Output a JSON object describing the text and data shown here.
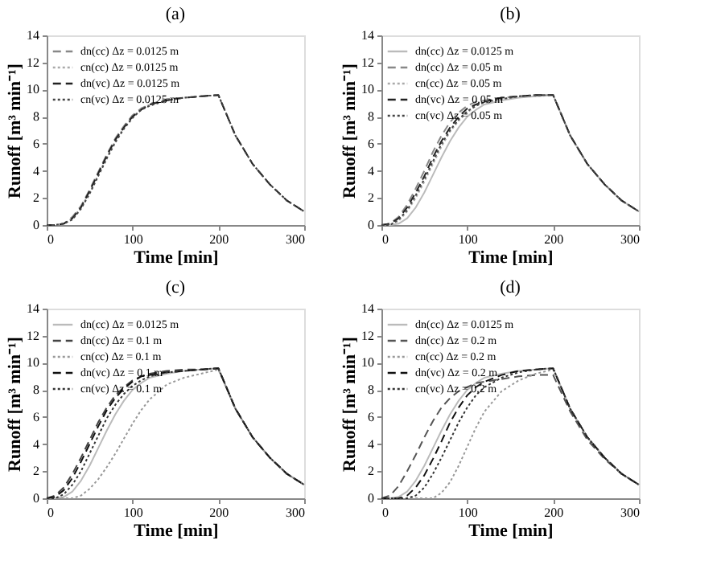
{
  "chart_data": [
    {
      "type": "line",
      "title": "(a)",
      "xlabel": "Time [min]",
      "ylabel": "Runoff [m³ min⁻¹]",
      "xlim": [
        0,
        300
      ],
      "xticks": [
        0,
        100,
        200,
        300
      ],
      "ylim": [
        0,
        14
      ],
      "yticks": [
        0,
        2,
        4,
        6,
        8,
        10,
        12,
        14
      ],
      "grid": false,
      "legend": "top left",
      "marker": "none",
      "x": [
        0,
        10,
        20,
        30,
        40,
        50,
        60,
        70,
        80,
        90,
        100,
        110,
        120,
        140,
        160,
        180,
        200,
        220,
        240,
        260,
        280,
        300
      ],
      "series": [
        {
          "name": "dn(cc) Δz = 0.0125 m",
          "color": "#888888",
          "line_style": "dashed",
          "values": [
            0,
            0,
            0.1,
            0.6,
            1.4,
            2.6,
            3.9,
            5.2,
            6.4,
            7.3,
            8.1,
            8.6,
            8.9,
            9.3,
            9.4,
            9.5,
            9.6,
            6.6,
            4.5,
            3.0,
            1.8,
            1.0
          ]
        },
        {
          "name": "cn(cc) Δz = 0.0125 m",
          "color": "#aaaaaa",
          "line_style": "dotted",
          "values": [
            0,
            0,
            0.1,
            0.5,
            1.3,
            2.4,
            3.7,
            5.0,
            6.2,
            7.2,
            8.0,
            8.5,
            8.9,
            9.2,
            9.4,
            9.5,
            9.6,
            6.6,
            4.5,
            3.0,
            1.8,
            1.0
          ]
        },
        {
          "name": "dn(vc) Δz = 0.0125 m",
          "color": "#222222",
          "line_style": "dashed",
          "values": [
            0,
            0,
            0.1,
            0.5,
            1.3,
            2.5,
            3.8,
            5.1,
            6.3,
            7.2,
            8.0,
            8.5,
            8.9,
            9.2,
            9.4,
            9.5,
            9.6,
            6.6,
            4.5,
            3.0,
            1.8,
            1.0
          ]
        },
        {
          "name": "cn(vc) Δz = 0.0125 m",
          "color": "#444444",
          "line_style": "dotted",
          "values": [
            0,
            0,
            0.1,
            0.4,
            1.2,
            2.3,
            3.6,
            4.9,
            6.1,
            7.1,
            7.9,
            8.5,
            8.8,
            9.2,
            9.4,
            9.5,
            9.6,
            6.6,
            4.5,
            3.0,
            1.8,
            1.0
          ]
        }
      ]
    },
    {
      "type": "line",
      "title": "(b)",
      "xlabel": "Time [min]",
      "ylabel": "Runoff [m³ min⁻¹]",
      "xlim": [
        0,
        300
      ],
      "xticks": [
        0,
        100,
        200,
        300
      ],
      "ylim": [
        0,
        14
      ],
      "yticks": [
        0,
        2,
        4,
        6,
        8,
        10,
        12,
        14
      ],
      "grid": false,
      "legend": "top left",
      "marker": "none",
      "x": [
        0,
        10,
        20,
        30,
        40,
        50,
        60,
        70,
        80,
        90,
        100,
        110,
        120,
        140,
        160,
        180,
        200,
        220,
        240,
        260,
        280,
        300
      ],
      "series": [
        {
          "name": "dn(cc) Δz = 0.0125 m",
          "color": "#bbbbbb",
          "line_style": "solid",
          "values": [
            0,
            0,
            0.1,
            0.5,
            1.3,
            2.4,
            3.7,
            5.0,
            6.2,
            7.2,
            8.0,
            8.5,
            8.9,
            9.2,
            9.4,
            9.5,
            9.6,
            6.6,
            4.5,
            3.0,
            1.8,
            1.0
          ]
        },
        {
          "name": "dn(cc) Δz = 0.05 m",
          "color": "#888888",
          "line_style": "dashed",
          "values": [
            0,
            0.1,
            0.6,
            1.5,
            2.7,
            4.0,
            5.4,
            6.6,
            7.6,
            8.3,
            8.8,
            9.1,
            9.2,
            9.4,
            9.5,
            9.6,
            9.6,
            6.6,
            4.5,
            3.0,
            1.8,
            1.0
          ]
        },
        {
          "name": "cn(cc) Δz = 0.05 m",
          "color": "#aaaaaa",
          "line_style": "dotted",
          "values": [
            0,
            0,
            0.3,
            1.0,
            2.0,
            3.2,
            4.5,
            5.8,
            6.9,
            7.7,
            8.3,
            8.8,
            9.0,
            9.3,
            9.5,
            9.5,
            9.6,
            6.6,
            4.5,
            3.0,
            1.8,
            1.0
          ]
        },
        {
          "name": "dn(vc) Δz = 0.05 m",
          "color": "#222222",
          "line_style": "dashed",
          "values": [
            0,
            0.1,
            0.5,
            1.3,
            2.4,
            3.6,
            5.0,
            6.2,
            7.2,
            8.0,
            8.6,
            8.9,
            9.1,
            9.4,
            9.5,
            9.6,
            9.6,
            6.6,
            4.5,
            3.0,
            1.8,
            1.0
          ]
        },
        {
          "name": "cn(vc) Δz = 0.05 m",
          "color": "#444444",
          "line_style": "dotted",
          "values": [
            0,
            0,
            0.4,
            1.1,
            2.2,
            3.4,
            4.7,
            6.0,
            7.0,
            7.8,
            8.4,
            8.8,
            9.1,
            9.3,
            9.5,
            9.6,
            9.6,
            6.6,
            4.5,
            3.0,
            1.8,
            1.0
          ]
        }
      ]
    },
    {
      "type": "line",
      "title": "(c)",
      "xlabel": "Time [min]",
      "ylabel": "Runoff [m³ min⁻¹]",
      "xlim": [
        0,
        300
      ],
      "xticks": [
        0,
        100,
        200,
        300
      ],
      "ylim": [
        0,
        14
      ],
      "yticks": [
        0,
        2,
        4,
        6,
        8,
        10,
        12,
        14
      ],
      "grid": false,
      "legend": "top left",
      "marker": "none",
      "x": [
        0,
        10,
        20,
        30,
        40,
        50,
        60,
        70,
        80,
        90,
        100,
        110,
        120,
        140,
        160,
        180,
        200,
        220,
        240,
        260,
        280,
        300
      ],
      "series": [
        {
          "name": "dn(cc) Δz = 0.0125 m",
          "color": "#bbbbbb",
          "line_style": "solid",
          "values": [
            0,
            0,
            0.1,
            0.5,
            1.3,
            2.4,
            3.7,
            5.0,
            6.2,
            7.2,
            8.0,
            8.5,
            8.9,
            9.2,
            9.4,
            9.5,
            9.6,
            6.6,
            4.5,
            3.0,
            1.8,
            1.0
          ]
        },
        {
          "name": "dn(cc) Δz = 0.1 m",
          "color": "#444444",
          "line_style": "dashed",
          "values": [
            0,
            0.2,
            0.8,
            1.8,
            3.0,
            4.3,
            5.6,
            6.7,
            7.6,
            8.2,
            8.7,
            9.0,
            9.2,
            9.4,
            9.5,
            9.5,
            9.6,
            6.6,
            4.5,
            3.0,
            1.8,
            1.0
          ]
        },
        {
          "name": "cn(cc) Δz = 0.1 m",
          "color": "#999999",
          "line_style": "dotted",
          "values": [
            0,
            0,
            0,
            0,
            0.2,
            0.7,
            1.4,
            2.3,
            3.3,
            4.4,
            5.5,
            6.5,
            7.3,
            8.4,
            8.9,
            9.2,
            9.5,
            6.6,
            4.5,
            3.0,
            1.8,
            1.0
          ]
        },
        {
          "name": "dn(vc) Δz = 0.1 m",
          "color": "#111111",
          "line_style": "dashed",
          "values": [
            0,
            0.1,
            0.6,
            1.5,
            2.7,
            4.0,
            5.3,
            6.5,
            7.4,
            8.1,
            8.6,
            9.0,
            9.1,
            9.3,
            9.4,
            9.5,
            9.6,
            6.6,
            4.5,
            3.0,
            1.8,
            1.0
          ]
        },
        {
          "name": "cn(vc) Δz = 0.1 m",
          "color": "#333333",
          "line_style": "dotted",
          "values": [
            0,
            0,
            0.3,
            1.0,
            2.0,
            3.3,
            4.6,
            5.9,
            6.9,
            7.7,
            8.3,
            8.7,
            9.0,
            9.3,
            9.4,
            9.5,
            9.6,
            6.6,
            4.5,
            3.0,
            1.8,
            1.0
          ]
        }
      ]
    },
    {
      "type": "line",
      "title": "(d)",
      "xlabel": "Time [min]",
      "ylabel": "Runoff [m³ min⁻¹]",
      "xlim": [
        0,
        300
      ],
      "xticks": [
        0,
        100,
        200,
        300
      ],
      "ylim": [
        0,
        14
      ],
      "yticks": [
        0,
        2,
        4,
        6,
        8,
        10,
        12,
        14
      ],
      "grid": false,
      "legend": "top left",
      "marker": "none",
      "x": [
        0,
        10,
        20,
        30,
        40,
        50,
        60,
        70,
        80,
        90,
        100,
        110,
        120,
        140,
        160,
        180,
        200,
        220,
        240,
        260,
        280,
        300
      ],
      "series": [
        {
          "name": "dn(cc) Δz = 0.0125 m",
          "color": "#bbbbbb",
          "line_style": "solid",
          "values": [
            0,
            0,
            0.1,
            0.5,
            1.3,
            2.4,
            3.7,
            5.0,
            6.2,
            7.2,
            8.0,
            8.5,
            8.9,
            9.2,
            9.4,
            9.5,
            9.6,
            6.6,
            4.5,
            3.0,
            1.8,
            1.0
          ]
        },
        {
          "name": "dn(cc) Δz = 0.2 m",
          "color": "#555555",
          "line_style": "dashed",
          "values": [
            0,
            0.2,
            0.9,
            2.0,
            3.2,
            4.5,
            5.7,
            6.7,
            7.4,
            7.9,
            8.2,
            8.5,
            8.6,
            8.8,
            9.0,
            9.1,
            9.1,
            6.4,
            4.3,
            2.9,
            1.8,
            1.0
          ]
        },
        {
          "name": "cn(cc) Δz = 0.2 m",
          "color": "#999999",
          "line_style": "dotted",
          "values": [
            0,
            0,
            0,
            0,
            0,
            0,
            0,
            0.4,
            1.2,
            2.4,
            3.8,
            5.2,
            6.4,
            7.9,
            8.7,
            9.2,
            9.5,
            6.6,
            4.5,
            3.0,
            1.8,
            1.0
          ]
        },
        {
          "name": "dn(vc) Δz = 0.2 m",
          "color": "#111111",
          "line_style": "dashed",
          "values": [
            0,
            0,
            0,
            0.2,
            0.8,
            1.7,
            2.9,
            4.2,
            5.6,
            6.7,
            7.6,
            8.2,
            8.6,
            9.1,
            9.4,
            9.5,
            9.6,
            6.6,
            4.5,
            3.0,
            1.8,
            1.0
          ]
        },
        {
          "name": "cn(vc) Δz = 0.2 m",
          "color": "#333333",
          "line_style": "dotted",
          "values": [
            0,
            0,
            0,
            0,
            0.2,
            0.8,
            1.8,
            3.0,
            4.3,
            5.6,
            6.7,
            7.6,
            8.2,
            8.9,
            9.3,
            9.5,
            9.6,
            6.6,
            4.5,
            3.0,
            1.8,
            1.0
          ]
        }
      ]
    }
  ]
}
